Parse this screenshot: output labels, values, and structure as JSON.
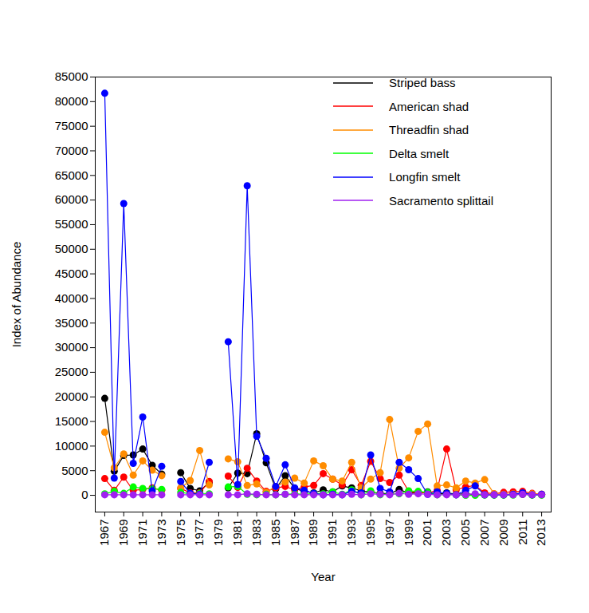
{
  "chart_data": {
    "type": "line",
    "x_label": "Year",
    "y_label": "Index of Abundance",
    "x": [
      1967,
      1968,
      1969,
      1970,
      1971,
      1972,
      1973,
      1974,
      1975,
      1976,
      1977,
      1978,
      1979,
      1980,
      1981,
      1982,
      1983,
      1984,
      1985,
      1986,
      1987,
      1988,
      1989,
      1990,
      1991,
      1992,
      1993,
      1994,
      1995,
      1996,
      1997,
      1998,
      1999,
      2000,
      2001,
      2002,
      2003,
      2004,
      2005,
      2006,
      2007,
      2008,
      2009,
      2010,
      2011,
      2012,
      2013
    ],
    "xlim": [
      1966,
      2014
    ],
    "xticks": [
      1967,
      1969,
      1971,
      1973,
      1975,
      1977,
      1979,
      1981,
      1983,
      1985,
      1987,
      1989,
      1991,
      1993,
      1995,
      1997,
      1999,
      2001,
      2003,
      2005,
      2007,
      2009,
      2011,
      2013
    ],
    "ylim": [
      -3400,
      85000
    ],
    "yticks": [
      0,
      5000,
      10000,
      15000,
      20000,
      25000,
      30000,
      35000,
      40000,
      45000,
      50000,
      55000,
      60000,
      65000,
      70000,
      75000,
      80000,
      85000
    ],
    "grid": false,
    "legend": "top-right",
    "marker": "circle",
    "line_style": "solid",
    "series": [
      {
        "name": "Striped bass",
        "color": "#000000",
        "values": [
          19700,
          4900,
          8100,
          8200,
          9400,
          6100,
          4300,
          null,
          4600,
          1400,
          900,
          2600,
          null,
          1500,
          4500,
          4400,
          12500,
          6600,
          1300,
          4000,
          1400,
          800,
          500,
          1100,
          700,
          1900,
          1500,
          900,
          700,
          400,
          300,
          1200,
          400,
          500,
          700,
          200,
          500,
          200,
          300,
          100,
          200,
          100,
          100,
          200,
          200,
          100,
          100
        ]
      },
      {
        "name": "American shad",
        "color": "#ff0000",
        "values": [
          3400,
          1000,
          3700,
          1000,
          1200,
          1500,
          1000,
          null,
          1400,
          500,
          500,
          2800,
          null,
          3900,
          1600,
          5500,
          2900,
          800,
          1500,
          1800,
          1100,
          1700,
          2000,
          4400,
          3300,
          2100,
          5200,
          2000,
          6900,
          3400,
          2600,
          4100,
          800,
          500,
          500,
          1000,
          9400,
          1100,
          1700,
          2000,
          500,
          300,
          600,
          700,
          800,
          400,
          200
        ]
      },
      {
        "name": "Threadfin shad",
        "color": "#ff8c00",
        "values": [
          12800,
          5600,
          8400,
          4100,
          7000,
          5100,
          4000,
          null,
          1500,
          3000,
          9100,
          2100,
          null,
          7400,
          6800,
          2000,
          2300,
          600,
          1800,
          2700,
          3500,
          2500,
          7000,
          6000,
          3300,
          2900,
          6700,
          1500,
          3300,
          4600,
          15400,
          5500,
          7600,
          13000,
          14500,
          1900,
          2100,
          1500,
          2900,
          2500,
          3200,
          300,
          200,
          300,
          400,
          300,
          200
        ]
      },
      {
        "name": "Delta smelt",
        "color": "#00ff00",
        "values": [
          300,
          800,
          400,
          1700,
          1400,
          1300,
          1200,
          null,
          600,
          300,
          400,
          300,
          null,
          1700,
          1800,
          200,
          100,
          200,
          100,
          200,
          300,
          200,
          400,
          300,
          700,
          200,
          1100,
          100,
          900,
          100,
          300,
          300,
          900,
          800,
          600,
          100,
          200,
          100,
          0,
          0,
          30,
          20,
          20,
          30,
          300,
          40,
          20
        ]
      },
      {
        "name": "Longfin smelt",
        "color": "#0000ff",
        "values": [
          81700,
          3500,
          59300,
          6500,
          15900,
          900,
          5900,
          null,
          2800,
          400,
          200,
          6700,
          null,
          31200,
          2200,
          62900,
          12000,
          7500,
          1800,
          6200,
          1500,
          1000,
          400,
          100,
          200,
          100,
          800,
          500,
          8200,
          1400,
          700,
          6700,
          5200,
          3400,
          200,
          700,
          400,
          100,
          1000,
          1900,
          100,
          100,
          100,
          200,
          500,
          100,
          200
        ]
      },
      {
        "name": "Sacramento splittail",
        "color": "#a020f0",
        "values": [
          100,
          100,
          100,
          100,
          100,
          100,
          100,
          null,
          100,
          100,
          100,
          100,
          null,
          100,
          100,
          300,
          200,
          100,
          100,
          200,
          100,
          100,
          100,
          100,
          100,
          100,
          200,
          100,
          300,
          200,
          100,
          400,
          200,
          300,
          200,
          100,
          100,
          100,
          100,
          300,
          100,
          100,
          100,
          100,
          200,
          100,
          100
        ]
      }
    ]
  }
}
